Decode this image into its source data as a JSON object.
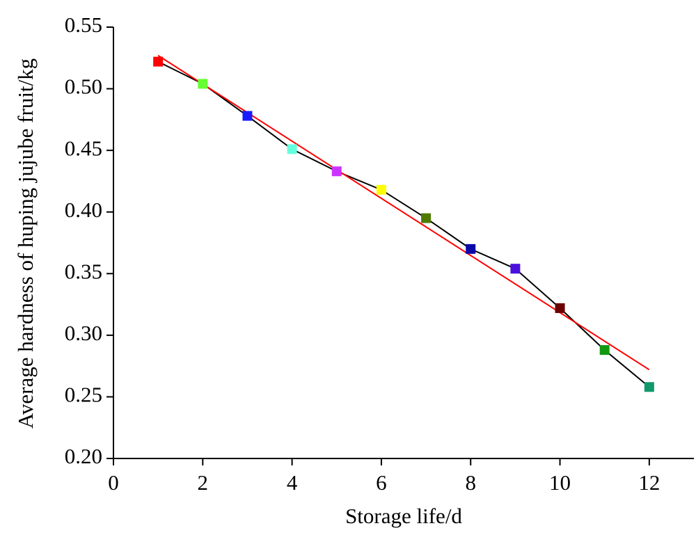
{
  "chart_data": {
    "type": "line",
    "x_label": "Storage life/d",
    "y_label": "Average hardness of huping jujube fruit/kg",
    "x": [
      1,
      2,
      3,
      4,
      5,
      6,
      7,
      8,
      9,
      10,
      11,
      12
    ],
    "series": [
      {
        "color": "#000000",
        "marker_colors": [
          "#ff0000",
          "#66ff33",
          "#1a1aff",
          "#66ffdd",
          "#cc33ff",
          "#ffff00",
          "#4f7a00",
          "#0a0aa8",
          "#4a10dd",
          "#6a0000",
          "#119911",
          "#11996b"
        ],
        "values": [
          0.522,
          0.504,
          0.478,
          0.451,
          0.433,
          0.418,
          0.395,
          0.37,
          0.354,
          0.322,
          0.288,
          0.258
        ]
      }
    ],
    "fit_line": {
      "color": "#ff0000",
      "x": [
        1,
        12
      ],
      "values": [
        0.527,
        0.272
      ]
    },
    "xlim": [
      0,
      13
    ],
    "xticks": [
      0,
      2,
      4,
      6,
      8,
      10,
      12
    ],
    "ylim": [
      0.2,
      0.55
    ],
    "yticks": [
      {
        "value": 0.2,
        "label": "0.20"
      },
      0.25,
      {
        "value": 0.3,
        "label": "0.30"
      },
      0.35,
      {
        "value": 0.4,
        "label": "0.40"
      },
      0.45,
      {
        "value": 0.5,
        "label": "0.50"
      },
      0.55
    ]
  }
}
